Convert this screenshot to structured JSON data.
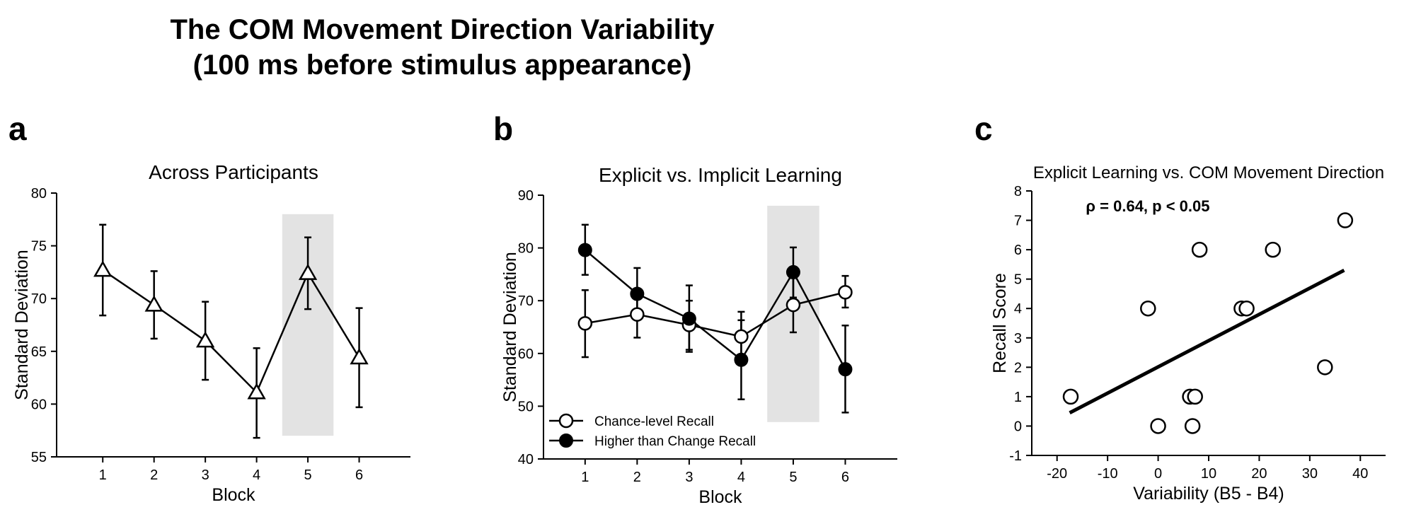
{
  "figure": {
    "title_line1": "The COM Movement Direction Variability",
    "title_line2": "(100 ms before stimulus appearance)"
  },
  "chart_data": [
    {
      "panel": "a",
      "type": "line",
      "title": "Across Participants",
      "xlabel": "Block",
      "ylabel": "Standard Deviation",
      "x": [
        1,
        2,
        3,
        4,
        5,
        6
      ],
      "xlim": [
        0.1,
        7.0
      ],
      "ylim": [
        55,
        80
      ],
      "yticks": [
        55,
        60,
        65,
        70,
        75,
        80
      ],
      "shaded_block": {
        "x_from": 4.5,
        "x_to": 5.5,
        "y_from": 57,
        "y_to": 78
      },
      "series": [
        {
          "name": "Across Participants",
          "marker": "open-triangle",
          "values": [
            72.7,
            69.4,
            66.0,
            61.1,
            72.4,
            64.4
          ],
          "err_low": [
            68.4,
            66.2,
            62.3,
            56.8,
            69.0,
            59.7
          ],
          "err_high": [
            77.0,
            72.6,
            69.7,
            65.3,
            75.8,
            69.1
          ]
        }
      ],
      "colors": {
        "shade": "#e3e3e3",
        "line": "#000000"
      }
    },
    {
      "panel": "b",
      "type": "line",
      "title": "Explicit vs. Implicit Learning",
      "xlabel": "Block",
      "ylabel": "Standard Deviation",
      "x": [
        1,
        2,
        3,
        4,
        5,
        6
      ],
      "xlim": [
        0.2,
        7.0
      ],
      "ylim": [
        40,
        90
      ],
      "yticks": [
        40,
        50,
        60,
        70,
        80,
        90
      ],
      "shaded_block": {
        "x_from": 4.5,
        "x_to": 5.5,
        "y_from": 47,
        "y_to": 88
      },
      "legend_position": "bottom-left",
      "series": [
        {
          "name": "Chance-level Recall",
          "marker": "open-circle",
          "values": [
            65.7,
            67.4,
            65.4,
            63.2,
            69.2,
            71.6
          ],
          "err_low": [
            59.3,
            63.0,
            60.7,
            58.5,
            64.0,
            68.7
          ],
          "err_high": [
            72.0,
            71.8,
            70.0,
            67.9,
            74.3,
            74.7
          ]
        },
        {
          "name": "Higher than Change Recall",
          "marker": "filled-circle",
          "values": [
            79.6,
            71.3,
            66.6,
            58.8,
            75.4,
            57.0
          ],
          "err_low": [
            74.9,
            66.5,
            60.3,
            51.3,
            70.6,
            48.8
          ],
          "err_high": [
            84.4,
            76.2,
            72.9,
            66.3,
            80.1,
            65.3
          ]
        }
      ],
      "colors": {
        "shade": "#e3e3e3",
        "line": "#000000"
      }
    },
    {
      "panel": "c",
      "type": "scatter",
      "title": "Explicit Learning vs. COM Movement Direction",
      "xlabel": "Variability (B5 - B4)",
      "ylabel": "Recall Score",
      "xlim": [
        -25,
        45
      ],
      "ylim": [
        -1,
        8
      ],
      "xticks": [
        -20,
        -10,
        0,
        10,
        20,
        30,
        40
      ],
      "yticks": [
        -1,
        0,
        1,
        2,
        3,
        4,
        5,
        6,
        7,
        8
      ],
      "annotation": "ρ = 0.64, p < 0.05",
      "points": [
        {
          "x": -17.3,
          "y": 1
        },
        {
          "x": -2,
          "y": 4
        },
        {
          "x": 0,
          "y": 0
        },
        {
          "x": 6.3,
          "y": 1
        },
        {
          "x": 7.3,
          "y": 1
        },
        {
          "x": 6.8,
          "y": 0
        },
        {
          "x": 8.2,
          "y": 6
        },
        {
          "x": 16.5,
          "y": 4
        },
        {
          "x": 17.5,
          "y": 4
        },
        {
          "x": 22.7,
          "y": 6
        },
        {
          "x": 33,
          "y": 2
        },
        {
          "x": 37,
          "y": 7
        }
      ],
      "fit_line": {
        "x": [
          -17.5,
          36.8
        ],
        "y": [
          0.45,
          5.3
        ]
      },
      "colors": {
        "line": "#000000"
      }
    }
  ]
}
